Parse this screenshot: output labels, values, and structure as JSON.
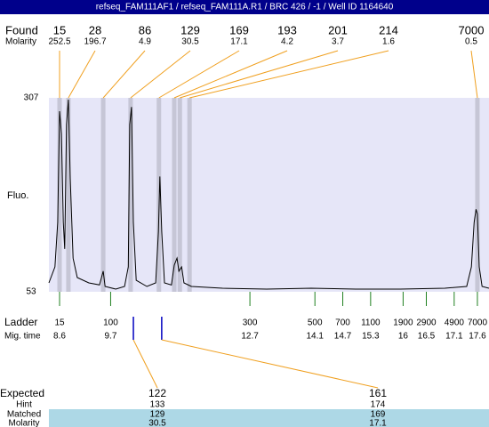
{
  "title": "refseq_FAM111AF1 / refseq_FAM111A.R1 / BRC 426 / -1 / Well ID 1164640",
  "chart_data": {
    "type": "electropherogram",
    "y_label": "Fluo.",
    "ylim": [
      53,
      307
    ],
    "yticks": [
      307,
      53
    ],
    "xlim": [
      8.37,
      17.85
    ],
    "x": [
      8.37,
      8.5,
      8.56,
      8.6,
      8.64,
      8.68,
      8.71,
      8.75,
      8.79,
      8.83,
      8.89,
      8.98,
      9.23,
      9.46,
      9.54,
      9.58,
      9.81,
      10.0,
      10.08,
      10.11,
      10.15,
      10.19,
      10.25,
      10.48,
      10.67,
      10.73,
      10.76,
      10.8,
      10.86,
      11.01,
      11.07,
      11.13,
      11.17,
      11.23,
      11.28,
      11.44,
      12.11,
      13.06,
      14.02,
      14.98,
      15.94,
      16.9,
      17.37,
      17.47,
      17.53,
      17.57,
      17.6,
      17.64,
      17.7,
      17.85
    ],
    "values": [
      64.6,
      85.6,
      143.9,
      289.5,
      260,
      144,
      109,
      272,
      304.7,
      202,
      97,
      71.6,
      64.6,
      62,
      80,
      60,
      56.5,
      60,
      85.6,
      272,
      295,
      144,
      68,
      60,
      64.6,
      132,
      204,
      132,
      64.6,
      62,
      88,
      97,
      80,
      85.6,
      64.6,
      60,
      57.7,
      56.5,
      57.7,
      56.5,
      56.5,
      57.7,
      60,
      85.6,
      144,
      161,
      155,
      85.6,
      60,
      57.7
    ],
    "color": "#000000",
    "background": "#e6e6f8",
    "band_color": "#c6c6d6"
  },
  "found": {
    "label": "Found",
    "molarity_label": "Molarity",
    "sizes": [
      15,
      28,
      86,
      129,
      169,
      193,
      201,
      214,
      7000
    ],
    "molarity": [
      252.5,
      196.7,
      4.9,
      30.5,
      17.1,
      4.2,
      3.7,
      1.6,
      0.5
    ],
    "times": [
      8.6,
      8.79,
      9.54,
      10.13,
      10.74,
      11.07,
      11.19,
      11.4,
      17.6
    ],
    "color": "#f0a020"
  },
  "ladder": {
    "label": "Ladder",
    "time_label": "Mig. time",
    "sizes": [
      15,
      100,
      300,
      500,
      700,
      1100,
      1900,
      2900,
      4900,
      7000
    ],
    "times": [
      8.6,
      9.7,
      12.7,
      14.1,
      14.7,
      15.3,
      16,
      16.5,
      17.1,
      17.6
    ],
    "color": "#208020"
  },
  "expected": {
    "label": "Expected",
    "hint_label": "Hint",
    "matched_label": "Matched",
    "molarity_label": "Molarity",
    "sizes": [
      122,
      161
    ],
    "hint": [
      133,
      174
    ],
    "matched": [
      129,
      169
    ],
    "molarity": [
      30.5,
      17.1
    ],
    "times": [
      10.19,
      10.8
    ],
    "marker_color": "#0000c0",
    "row_color": "#add8e6"
  }
}
